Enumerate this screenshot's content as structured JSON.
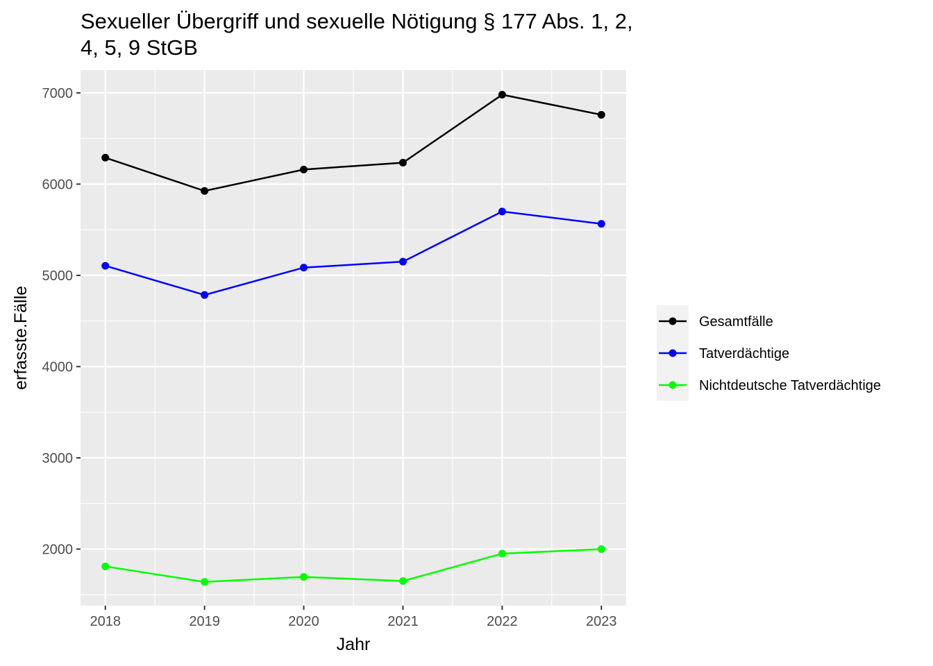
{
  "chart_data": {
    "type": "line",
    "title_lines": [
      "Sexueller Übergriff und sexuelle Nötigung § 177 Abs. 1, 2,",
      "4, 5, 9 StGB"
    ],
    "xlabel": "Jahr",
    "ylabel": "erfasste.Fälle",
    "x": [
      2018,
      2019,
      2020,
      2021,
      2022,
      2023
    ],
    "xlim": [
      2017.75,
      2023.25
    ],
    "ylim": [
      1380,
      7250
    ],
    "y_ticks": [
      2000,
      3000,
      4000,
      5000,
      6000,
      7000
    ],
    "x_tick_labels": [
      "2018",
      "2019",
      "2020",
      "2021",
      "2022",
      "2023"
    ],
    "y_tick_labels": [
      "2000",
      "3000",
      "4000",
      "5000",
      "6000",
      "7000"
    ],
    "grid": true,
    "legend_position": "right",
    "series": [
      {
        "name": "Gesamtfälle",
        "color": "#000000",
        "values": [
          6290,
          5925,
          6160,
          6235,
          6980,
          6760
        ]
      },
      {
        "name": "Tatverdächtige",
        "color": "#0000ff",
        "values": [
          5105,
          4785,
          5085,
          5150,
          5700,
          5565
        ]
      },
      {
        "name": "Nichtdeutsche Tatverdächtige",
        "color": "#00ff00",
        "values": [
          1810,
          1640,
          1695,
          1650,
          1950,
          2000
        ]
      }
    ]
  }
}
